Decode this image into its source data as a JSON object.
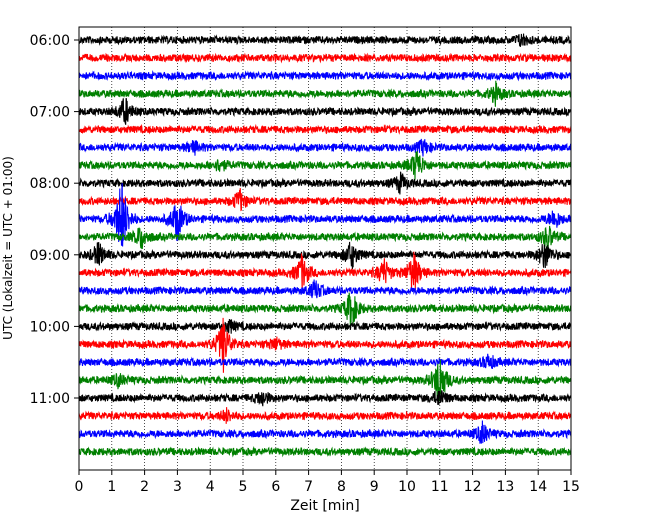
{
  "chart_data": {
    "type": "line",
    "title": "",
    "xlabel": "Zeit  [min]",
    "ylabel": "UTC (Lokalzeit = UTC + 01:00)",
    "xlim": [
      0,
      15
    ],
    "x_ticks": [
      "0",
      "1",
      "2",
      "3",
      "4",
      "5",
      "6",
      "7",
      "8",
      "9",
      "10",
      "11",
      "12",
      "13",
      "14",
      "15"
    ],
    "y_ticks": [
      "06:00",
      "07:00",
      "08:00",
      "09:00",
      "10:00",
      "11:00"
    ],
    "grid": "vertical-dotted",
    "trace_minutes_per_row": 15,
    "trace_colors": [
      "#000000",
      "#ff0000",
      "#0000ff",
      "#008000"
    ],
    "rows": [
      {
        "start": "06:00",
        "color": "#000000",
        "events": [
          {
            "t": 13.5,
            "amp": 0.5
          }
        ]
      },
      {
        "start": "06:15",
        "color": "#ff0000",
        "events": []
      },
      {
        "start": "06:30",
        "color": "#0000ff",
        "events": []
      },
      {
        "start": "06:45",
        "color": "#008000",
        "events": [
          {
            "t": 12.7,
            "amp": 0.8
          }
        ]
      },
      {
        "start": "07:00",
        "color": "#000000",
        "events": [
          {
            "t": 1.4,
            "amp": 1.2
          }
        ]
      },
      {
        "start": "07:15",
        "color": "#ff0000",
        "events": []
      },
      {
        "start": "07:30",
        "color": "#0000ff",
        "events": [
          {
            "t": 3.5,
            "amp": 0.5
          },
          {
            "t": 10.5,
            "amp": 0.6
          }
        ]
      },
      {
        "start": "07:45",
        "color": "#008000",
        "events": [
          {
            "t": 4.3,
            "amp": 0.5
          },
          {
            "t": 10.3,
            "amp": 1.4
          }
        ]
      },
      {
        "start": "08:00",
        "color": "#000000",
        "events": [
          {
            "t": 9.8,
            "amp": 0.8
          }
        ]
      },
      {
        "start": "08:15",
        "color": "#ff0000",
        "events": [
          {
            "t": 4.9,
            "amp": 0.9
          }
        ]
      },
      {
        "start": "08:30",
        "color": "#0000ff",
        "events": [
          {
            "t": 1.3,
            "amp": 3.5
          },
          {
            "t": 3.0,
            "amp": 1.8
          },
          {
            "t": 14.5,
            "amp": 0.8
          }
        ]
      },
      {
        "start": "08:45",
        "color": "#008000",
        "events": [
          {
            "t": 1.9,
            "amp": 1.0
          },
          {
            "t": 14.3,
            "amp": 1.0
          }
        ]
      },
      {
        "start": "09:00",
        "color": "#000000",
        "events": [
          {
            "t": 0.6,
            "amp": 1.0
          },
          {
            "t": 8.3,
            "amp": 1.2
          },
          {
            "t": 14.2,
            "amp": 1.2
          }
        ]
      },
      {
        "start": "09:15",
        "color": "#ff0000",
        "events": [
          {
            "t": 6.8,
            "amp": 1.5
          },
          {
            "t": 9.3,
            "amp": 1.1
          },
          {
            "t": 10.2,
            "amp": 1.8
          }
        ]
      },
      {
        "start": "09:30",
        "color": "#0000ff",
        "events": [
          {
            "t": 7.2,
            "amp": 0.8
          }
        ]
      },
      {
        "start": "09:45",
        "color": "#008000",
        "events": [
          {
            "t": 8.3,
            "amp": 1.6
          }
        ]
      },
      {
        "start": "10:00",
        "color": "#000000",
        "events": [
          {
            "t": 4.6,
            "amp": 0.5
          }
        ]
      },
      {
        "start": "10:15",
        "color": "#ff0000",
        "events": [
          {
            "t": 4.4,
            "amp": 2.2
          },
          {
            "t": 6.0,
            "amp": 0.5
          }
        ]
      },
      {
        "start": "10:30",
        "color": "#0000ff",
        "events": [
          {
            "t": 12.5,
            "amp": 0.6
          }
        ]
      },
      {
        "start": "10:45",
        "color": "#008000",
        "events": [
          {
            "t": 11.0,
            "amp": 2.2
          },
          {
            "t": 1.2,
            "amp": 0.5
          }
        ]
      },
      {
        "start": "11:00",
        "color": "#000000",
        "events": [
          {
            "t": 5.6,
            "amp": 0.6
          },
          {
            "t": 11.0,
            "amp": 0.7
          }
        ]
      },
      {
        "start": "11:15",
        "color": "#ff0000",
        "events": [
          {
            "t": 4.5,
            "amp": 0.5
          }
        ]
      },
      {
        "start": "11:30",
        "color": "#0000ff",
        "events": [
          {
            "t": 12.3,
            "amp": 0.9
          }
        ]
      },
      {
        "start": "11:45",
        "color": "#008000",
        "events": []
      }
    ]
  }
}
